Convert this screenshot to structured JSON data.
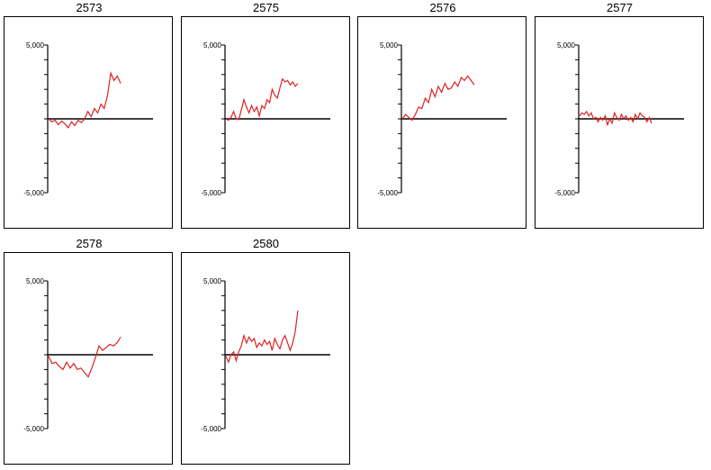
{
  "chart_data": [
    {
      "type": "line",
      "title": "2573",
      "ylim": [
        -5000,
        5000
      ],
      "y_tick_labels": [
        "5,000",
        "-5,000"
      ],
      "line_color": "#dd2222",
      "axis_color": "#000000",
      "values": [
        0,
        -200,
        -100,
        -400,
        -150,
        -350,
        -600,
        -200,
        -450,
        -100,
        -250,
        0,
        500,
        150,
        700,
        400,
        1000,
        700,
        1600,
        3100,
        2600,
        2900,
        2400
      ]
    },
    {
      "type": "line",
      "title": "2575",
      "ylim": [
        -5000,
        5000
      ],
      "y_tick_labels": [
        "5,000",
        "-5,000"
      ],
      "line_color": "#dd2222",
      "axis_color": "#000000",
      "values": [
        0,
        -100,
        100,
        500,
        0,
        -50,
        600,
        1300,
        800,
        400,
        900,
        500,
        800,
        200,
        900,
        700,
        1300,
        1100,
        2000,
        1600,
        1400,
        2100,
        2700,
        2500,
        2600,
        2300,
        2500,
        2200,
        2400
      ]
    },
    {
      "type": "line",
      "title": "2576",
      "ylim": [
        -5000,
        5000
      ],
      "y_tick_labels": [
        "5,000",
        "-5,000"
      ],
      "line_color": "#dd2222",
      "axis_color": "#000000",
      "values": [
        0,
        300,
        100,
        -100,
        300,
        800,
        700,
        1400,
        1100,
        2000,
        1500,
        2200,
        1800,
        2400,
        2000,
        2100,
        2500,
        2200,
        2800,
        2600,
        2900,
        2600,
        2300
      ]
    },
    {
      "type": "line",
      "title": "2577",
      "ylim": [
        -5000,
        5000
      ],
      "y_tick_labels": [
        "5,000",
        "-5,000"
      ],
      "line_color": "#dd2222",
      "axis_color": "#000000",
      "values": [
        200,
        400,
        300,
        500,
        200,
        400,
        0,
        100,
        -200,
        100,
        -100,
        200,
        -400,
        0,
        -300,
        400,
        100,
        -100,
        300,
        0,
        200,
        -100,
        100,
        -200,
        300,
        0,
        400,
        200,
        100,
        -200,
        100,
        -300
      ]
    },
    {
      "type": "line",
      "title": "2578",
      "ylim": [
        -5000,
        5000
      ],
      "y_tick_labels": [
        "5,000",
        "-5,000"
      ],
      "line_color": "#dd2222",
      "axis_color": "#000000",
      "values": [
        -100,
        -600,
        -500,
        -800,
        -1000,
        -500,
        -900,
        -600,
        -1000,
        -900,
        -1200,
        -1500,
        -900,
        -200,
        600,
        300,
        500,
        700,
        600,
        800,
        1200
      ]
    },
    {
      "type": "line",
      "title": "2580",
      "ylim": [
        -5000,
        5000
      ],
      "y_tick_labels": [
        "5,000",
        "-5,000"
      ],
      "line_color": "#dd2222",
      "axis_color": "#000000",
      "values": [
        -100,
        -500,
        0,
        200,
        -400,
        200,
        600,
        1300,
        800,
        1200,
        900,
        1100,
        500,
        800,
        600,
        1000,
        700,
        900,
        300,
        1100,
        700,
        400,
        1000,
        1300,
        800,
        300,
        800,
        1600,
        3000
      ]
    }
  ]
}
